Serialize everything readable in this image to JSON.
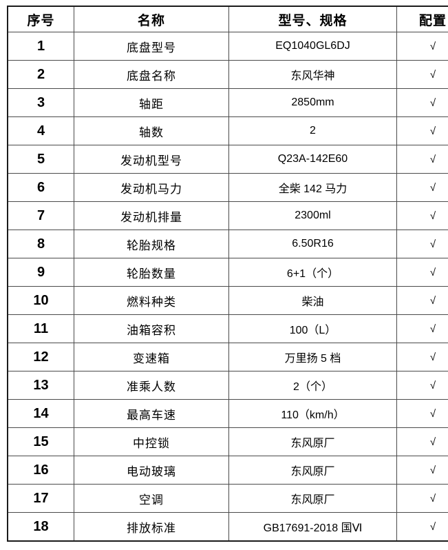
{
  "colors": {
    "background": "#ffffff",
    "text": "#000000",
    "outer_border": "#1a1a1a",
    "inner_border": "#4a4a4a"
  },
  "table": {
    "columns": [
      "序号",
      "名称",
      "型号、规格",
      "配置"
    ],
    "check_glyph": "√",
    "rows": [
      {
        "no": "1",
        "name": "底盘型号",
        "spec": "EQ1040GL6DJ",
        "check": "√"
      },
      {
        "no": "2",
        "name": "底盘名称",
        "spec": "东风华神",
        "check": "√"
      },
      {
        "no": "3",
        "name": "轴距",
        "spec": "2850mm",
        "check": "√"
      },
      {
        "no": "4",
        "name": "轴数",
        "spec": "2",
        "check": "√"
      },
      {
        "no": "5",
        "name": "发动机型号",
        "spec": "Q23A-142E60",
        "check": "√"
      },
      {
        "no": "6",
        "name": "发动机马力",
        "spec": "全柴 142 马力",
        "check": "√"
      },
      {
        "no": "7",
        "name": "发动机排量",
        "spec": "2300ml",
        "check": "√"
      },
      {
        "no": "8",
        "name": "轮胎规格",
        "spec": "6.50R16",
        "check": "√"
      },
      {
        "no": "9",
        "name": "轮胎数量",
        "spec": "6+1（个）",
        "check": "√"
      },
      {
        "no": "10",
        "name": "燃料种类",
        "spec": "柴油",
        "check": "√"
      },
      {
        "no": "11",
        "name": "油箱容积",
        "spec": "100（L）",
        "check": "√"
      },
      {
        "no": "12",
        "name": "变速箱",
        "spec": "万里扬 5 档",
        "check": "√"
      },
      {
        "no": "13",
        "name": "准乘人数",
        "spec": "2（个）",
        "check": "√"
      },
      {
        "no": "14",
        "name": "最高车速",
        "spec": "110（km/h）",
        "check": "√"
      },
      {
        "no": "15",
        "name": "中控锁",
        "spec": "东风原厂",
        "check": "√"
      },
      {
        "no": "16",
        "name": "电动玻璃",
        "spec": "东风原厂",
        "check": "√"
      },
      {
        "no": "17",
        "name": "空调",
        "spec": "东风原厂",
        "check": "√"
      },
      {
        "no": "18",
        "name": "排放标准",
        "spec": "GB17691-2018 国Ⅵ",
        "check": "√"
      }
    ]
  }
}
